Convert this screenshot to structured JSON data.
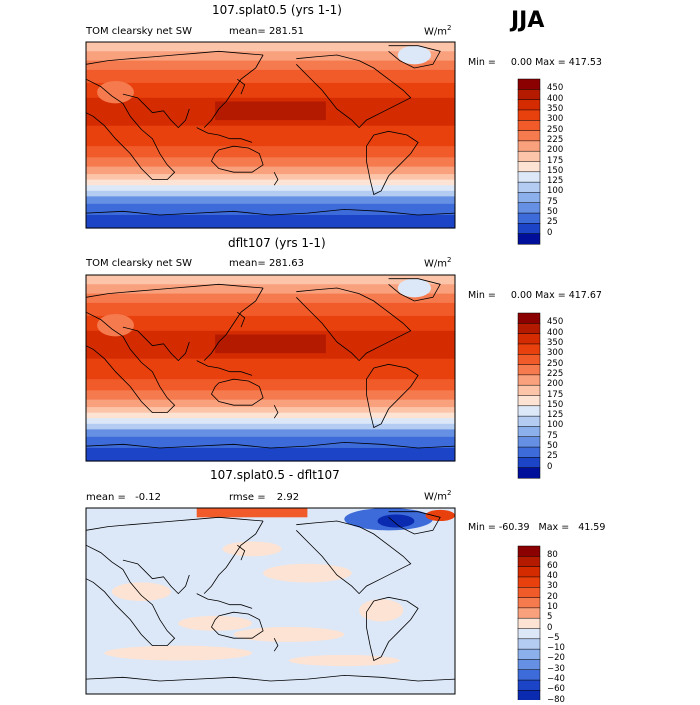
{
  "season": "JJA",
  "chart_data": [
    {
      "type": "heatmap",
      "title": "107.splat0.5 (yrs 1-1)",
      "variable": "TOM clearsky net SW",
      "stat_label": "mean=",
      "stat_value": "281.51",
      "units": "W/m",
      "units_sup": "2",
      "min_label": "Min =",
      "min_value": "0.00",
      "max_label": "Max =",
      "max_value": "417.53",
      "colorbar_levels": [
        "450",
        "400",
        "350",
        "300",
        "250",
        "225",
        "200",
        "175",
        "150",
        "125",
        "100",
        "75",
        "50",
        "25",
        "0"
      ],
      "colorbar_colors": [
        "#8b0000",
        "#b31a00",
        "#d42b00",
        "#e8410e",
        "#f15b2a",
        "#f57a4e",
        "#f9a07d",
        "#fcc4a9",
        "#fde3d3",
        "#dce8f8",
        "#b4ccf2",
        "#8cb0ec",
        "#6590e3",
        "#3d6bd9",
        "#1b44c7",
        "#000f99"
      ]
    },
    {
      "type": "heatmap",
      "title": "dflt107 (yrs 1-1)",
      "variable": "TOM clearsky net SW",
      "stat_label": "mean=",
      "stat_value": "281.63",
      "units": "W/m",
      "units_sup": "2",
      "min_label": "Min =",
      "min_value": "0.00",
      "max_label": "Max =",
      "max_value": "417.67",
      "colorbar_levels": [
        "450",
        "400",
        "350",
        "300",
        "250",
        "225",
        "200",
        "175",
        "150",
        "125",
        "100",
        "75",
        "50",
        "25",
        "0"
      ],
      "colorbar_colors": [
        "#8b0000",
        "#b31a00",
        "#d42b00",
        "#e8410e",
        "#f15b2a",
        "#f57a4e",
        "#f9a07d",
        "#fcc4a9",
        "#fde3d3",
        "#dce8f8",
        "#b4ccf2",
        "#8cb0ec",
        "#6590e3",
        "#3d6bd9",
        "#1b44c7",
        "#000f99"
      ]
    },
    {
      "type": "heatmap",
      "title": "107.splat0.5 - dflt107",
      "mean_label": "mean =",
      "mean_value": "-0.12",
      "rmse_label": "rmse =",
      "rmse_value": "2.92",
      "units": "W/m",
      "units_sup": "2",
      "min_label": "Min =",
      "min_value": "-60.39",
      "max_label": "Max =",
      "max_value": "41.59",
      "colorbar_levels": [
        "80",
        "60",
        "40",
        "30",
        "20",
        "10",
        "5",
        "0",
        "−5",
        "−10",
        "−20",
        "−30",
        "−40",
        "−60",
        "−80"
      ],
      "colorbar_colors": [
        "#8b0000",
        "#b31a00",
        "#d42b00",
        "#e8410e",
        "#f15b2a",
        "#f57a4e",
        "#f9a07d",
        "#fde3d3",
        "#dce8f8",
        "#b4ccf2",
        "#8cb0ec",
        "#6590e3",
        "#3d6bd9",
        "#1b44c7",
        "#0a2ab0",
        "#000f99"
      ]
    }
  ]
}
